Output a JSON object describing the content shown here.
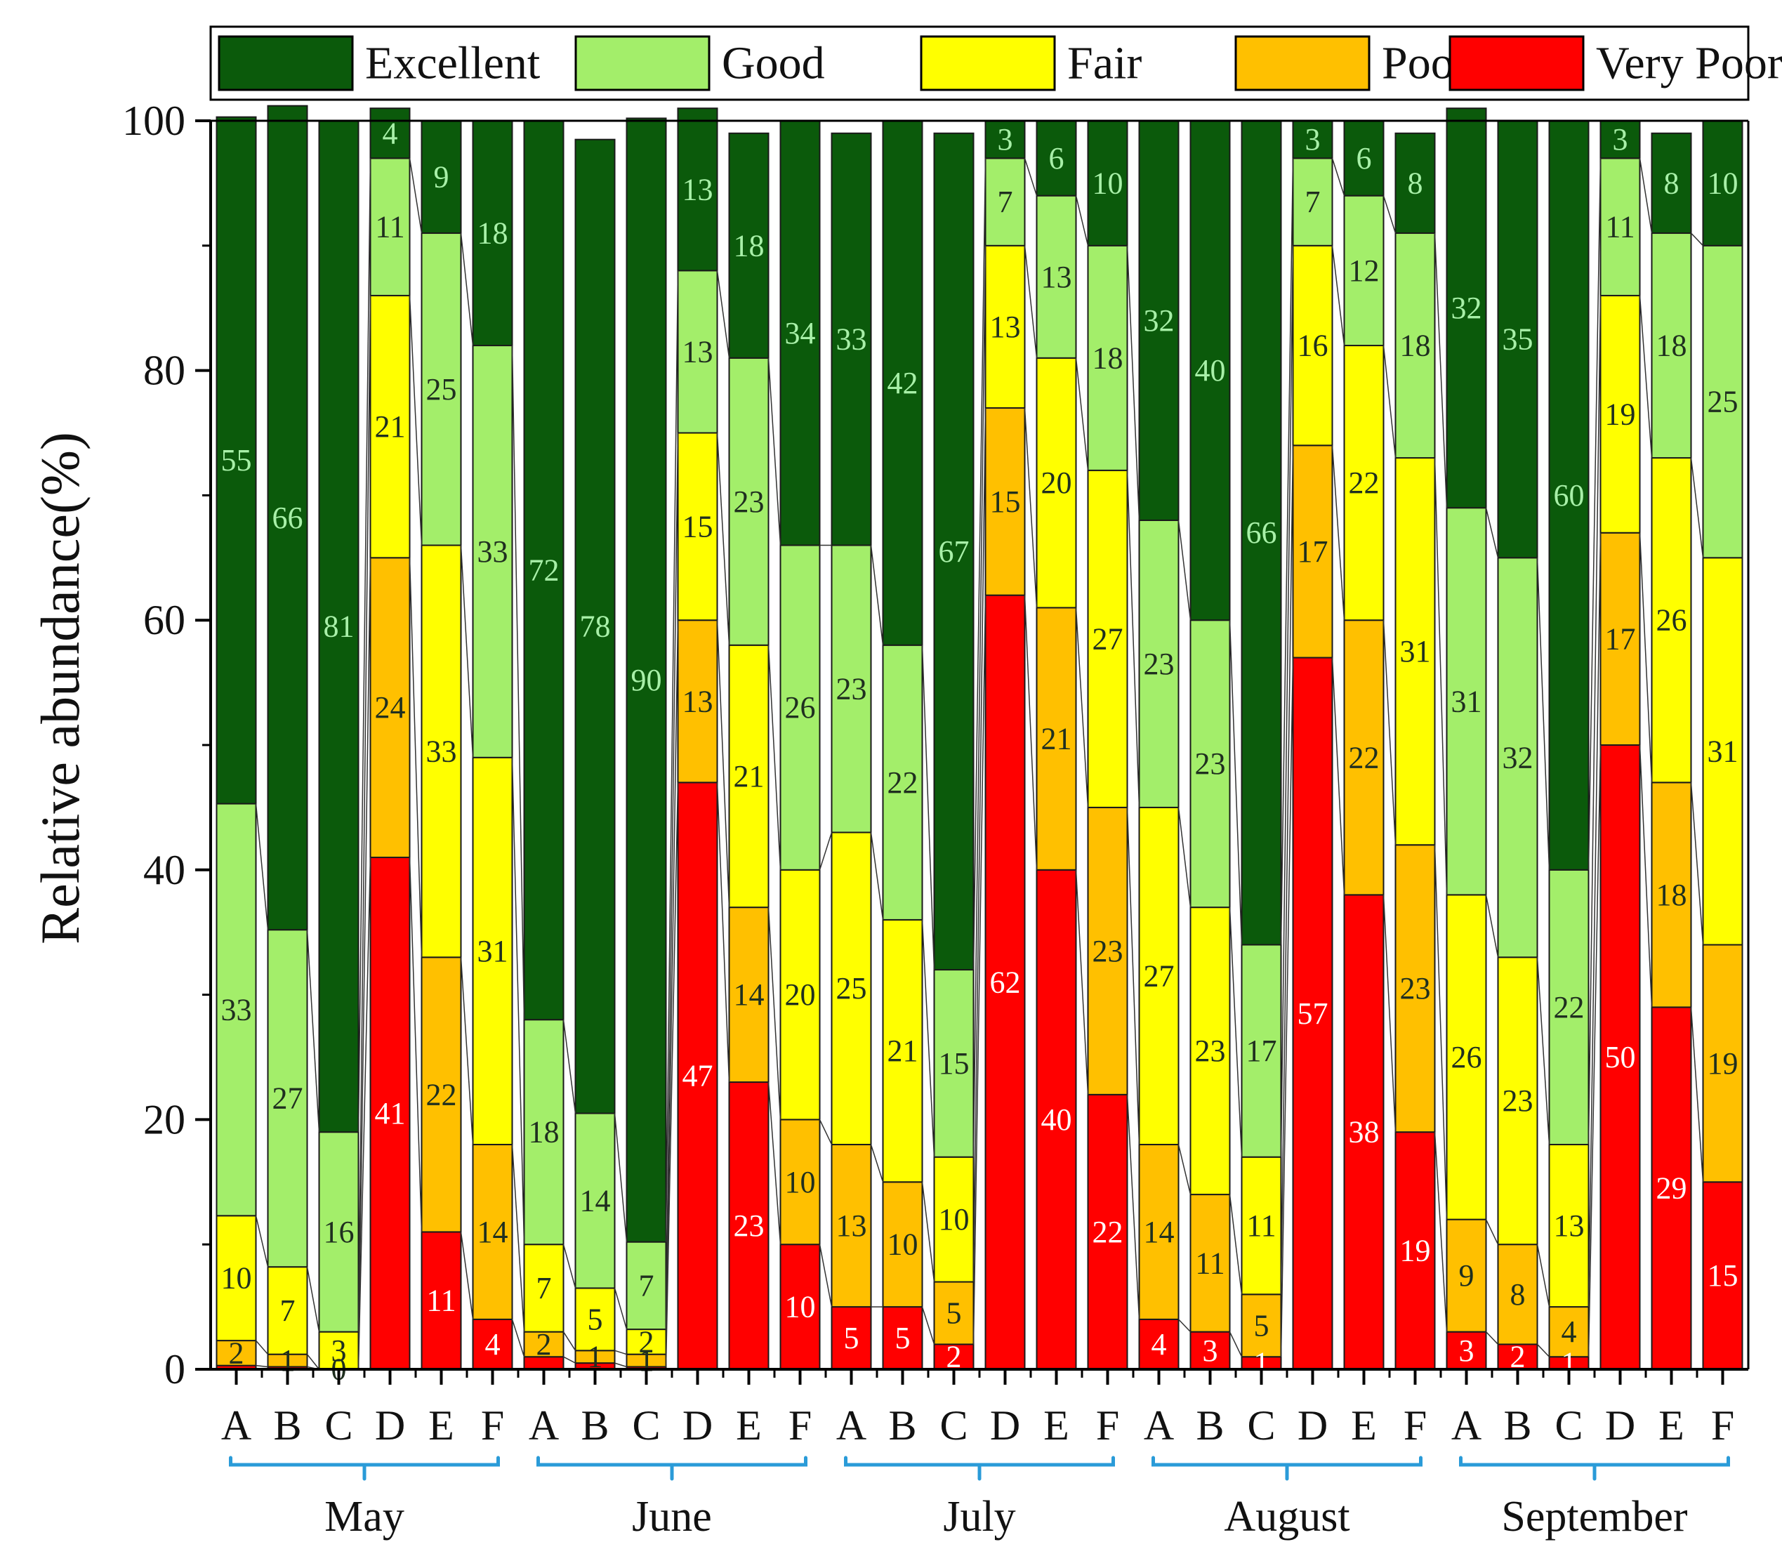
{
  "chart_data": {
    "type": "bar",
    "stacked": true,
    "ylabel": "Relative abundance(%)",
    "ylim": [
      0,
      100
    ],
    "yticks": [
      0,
      20,
      40,
      60,
      80,
      100
    ],
    "legend_position": "top",
    "groups": [
      {
        "name": "May",
        "categories": [
          "A",
          "B",
          "C",
          "D",
          "E",
          "F"
        ]
      },
      {
        "name": "June",
        "categories": [
          "A",
          "B",
          "C",
          "D",
          "E",
          "F"
        ]
      },
      {
        "name": "July",
        "categories": [
          "A",
          "B",
          "C",
          "D",
          "E",
          "F"
        ]
      },
      {
        "name": "August",
        "categories": [
          "A",
          "B",
          "C",
          "D",
          "E",
          "F"
        ]
      },
      {
        "name": "September",
        "categories": [
          "A",
          "B",
          "C",
          "D",
          "E",
          "F"
        ]
      }
    ],
    "series": [
      {
        "name": "Very Poor",
        "color": "#ff0000",
        "label_color": "#ffffff",
        "values": [
          0.3,
          0.2,
          0,
          41,
          11,
          4,
          1,
          0.5,
          0.2,
          47,
          23,
          10,
          5,
          5,
          2,
          62,
          40,
          22,
          4,
          3,
          1,
          57,
          38,
          19,
          3,
          2,
          1,
          50,
          29,
          15
        ],
        "labels": [
          "",
          "",
          "",
          "41",
          "11",
          "4",
          "",
          "",
          "",
          "47",
          "23",
          "10",
          "5",
          "5",
          "2",
          "62",
          "40",
          "22",
          "4",
          "3",
          "1",
          "57",
          "38",
          "19",
          "3",
          "2",
          "1",
          "50",
          "29",
          "15"
        ]
      },
      {
        "name": "Poor",
        "color": "#ffc000",
        "label_color": "#1f2f1f",
        "values": [
          2,
          1,
          0,
          24,
          22,
          14,
          2,
          1,
          1,
          13,
          14,
          10,
          13,
          10,
          5,
          15,
          21,
          23,
          14,
          11,
          5,
          17,
          22,
          23,
          9,
          8,
          4,
          17,
          18,
          19
        ],
        "labels": [
          "2",
          "1",
          "0",
          "24",
          "22",
          "14",
          "2",
          "1",
          "1",
          "13",
          "14",
          "10",
          "13",
          "10",
          "5",
          "15",
          "21",
          "23",
          "14",
          "11",
          "5",
          "17",
          "22",
          "23",
          "9",
          "8",
          "4",
          "17",
          "18",
          "19"
        ]
      },
      {
        "name": "Fair",
        "color": "#ffff00",
        "label_color": "#1f2f1f",
        "values": [
          10,
          7,
          3,
          21,
          33,
          31,
          7,
          5,
          2,
          15,
          21,
          20,
          25,
          21,
          10,
          13,
          20,
          27,
          27,
          23,
          11,
          16,
          22,
          31,
          26,
          23,
          13,
          19,
          26,
          31
        ],
        "labels": [
          "10",
          "7",
          "3",
          "21",
          "33",
          "31",
          "7",
          "5",
          "2",
          "15",
          "21",
          "20",
          "25",
          "21",
          "10",
          "13",
          "20",
          "27",
          "27",
          "23",
          "11",
          "16",
          "22",
          "31",
          "26",
          "23",
          "13",
          "19",
          "26",
          "31"
        ]
      },
      {
        "name": "Good",
        "color": "#a3ee6a",
        "label_color": "#1f2f1f",
        "values": [
          33,
          27,
          16,
          11,
          25,
          33,
          18,
          14,
          7,
          13,
          23,
          26,
          23,
          22,
          15,
          7,
          13,
          18,
          23,
          23,
          17,
          7,
          12,
          18,
          31,
          32,
          22,
          11,
          18,
          25
        ],
        "labels": [
          "33",
          "27",
          "16",
          "11",
          "25",
          "33",
          "18",
          "14",
          "7",
          "13",
          "23",
          "26",
          "23",
          "22",
          "15",
          "7",
          "13",
          "18",
          "23",
          "23",
          "17",
          "7",
          "12",
          "18",
          "31",
          "32",
          "22",
          "11",
          "18",
          "25"
        ]
      },
      {
        "name": "Excellent",
        "color": "#0b5a0b",
        "label_color": "#a8f0a8",
        "values": [
          55,
          66,
          81,
          4,
          9,
          18,
          72,
          78,
          90,
          13,
          18,
          34,
          33,
          42,
          67,
          3,
          6,
          10,
          32,
          40,
          66,
          3,
          6,
          8,
          32,
          35,
          60,
          3,
          8,
          10
        ],
        "labels": [
          "55",
          "66",
          "81",
          "4",
          "9",
          "18",
          "72",
          "78",
          "90",
          "13",
          "18",
          "34",
          "33",
          "42",
          "67",
          "3",
          "6",
          "10",
          "32",
          "40",
          "66",
          "3",
          "6",
          "8",
          "32",
          "35",
          "60",
          "3",
          "8",
          "10"
        ]
      }
    ],
    "legend_order": [
      "Excellent",
      "Good",
      "Fair",
      "Poor",
      "Very Poor"
    ]
  }
}
